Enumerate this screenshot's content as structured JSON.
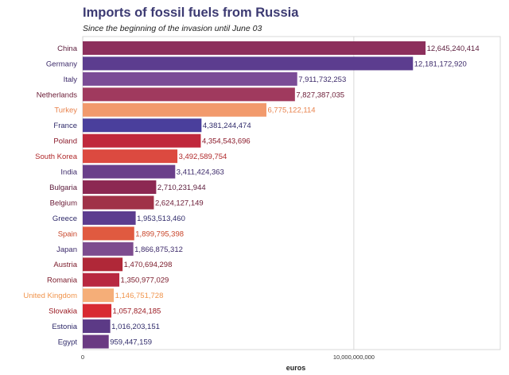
{
  "title": "Imports of fossil fuels from Russia",
  "subtitle": "Since the beginning of the invasion until June 03",
  "chart_data": {
    "type": "bar",
    "orientation": "horizontal",
    "title": "Imports of fossil fuels from Russia",
    "subtitle": "Since the beginning of the invasion until June 03",
    "xlabel": "euros",
    "ylabel": "",
    "xlim": [
      0,
      15400000000
    ],
    "xticks": [
      0,
      10000000000
    ],
    "xtick_labels": [
      "0",
      "10,000,000,000"
    ],
    "grid": true,
    "categories": [
      "China",
      "Germany",
      "Italy",
      "Netherlands",
      "Turkey",
      "France",
      "Poland",
      "South Korea",
      "India",
      "Bulgaria",
      "Belgium",
      "Greece",
      "Spain",
      "Japan",
      "Austria",
      "Romania",
      "United Kingdom",
      "Slovakia",
      "Estonia",
      "Egypt"
    ],
    "values": [
      12645240414,
      12181172920,
      7911732253,
      7827387035,
      6775122114,
      4381244474,
      4354543696,
      3492589754,
      3411424363,
      2710231944,
      2624127149,
      1953513460,
      1899795398,
      1866875312,
      1470694298,
      1350977029,
      1146751728,
      1057824185,
      1016203151,
      959447159
    ],
    "value_labels": [
      "12,645,240,414",
      "12,181,172,920",
      "7,911,732,253",
      "7,827,387,035",
      "6,775,122,114",
      "4,381,244,474",
      "4,354,543,696",
      "3,492,589,754",
      "3,411,424,363",
      "2,710,231,944",
      "2,624,127,149",
      "1,953,513,460",
      "1,899,795,398",
      "1,866,875,312",
      "1,470,694,298",
      "1,350,977,029",
      "1,146,751,728",
      "1,057,824,185",
      "1,016,203,151",
      "959,447,159"
    ],
    "colors": [
      "#8c2f5c",
      "#5c3d8f",
      "#7b4c96",
      "#a03a5e",
      "#f29a6c",
      "#4a3f9c",
      "#c0283c",
      "#dc4a40",
      "#6a3f8a",
      "#8c2852",
      "#a03248",
      "#5c3d8f",
      "#e05a40",
      "#7d4c8f",
      "#b02838",
      "#b82840",
      "#f5ae78",
      "#d82a32",
      "#5c3a86",
      "#6a3a82"
    ],
    "label_colors": [
      "#5a1a3a",
      "#3c2a6a",
      "#3c2a6a",
      "#6a1a34",
      "#e8824c",
      "#2f2a6a",
      "#8a1a2a",
      "#b0282a",
      "#3c2a6a",
      "#5a1a3a",
      "#6a1a34",
      "#2f2a6a",
      "#c84428",
      "#3c2a6a",
      "#7a1a2a",
      "#7a1a2a",
      "#f0944c",
      "#9a1a22",
      "#2f2a6a",
      "#2f2a6a"
    ]
  }
}
